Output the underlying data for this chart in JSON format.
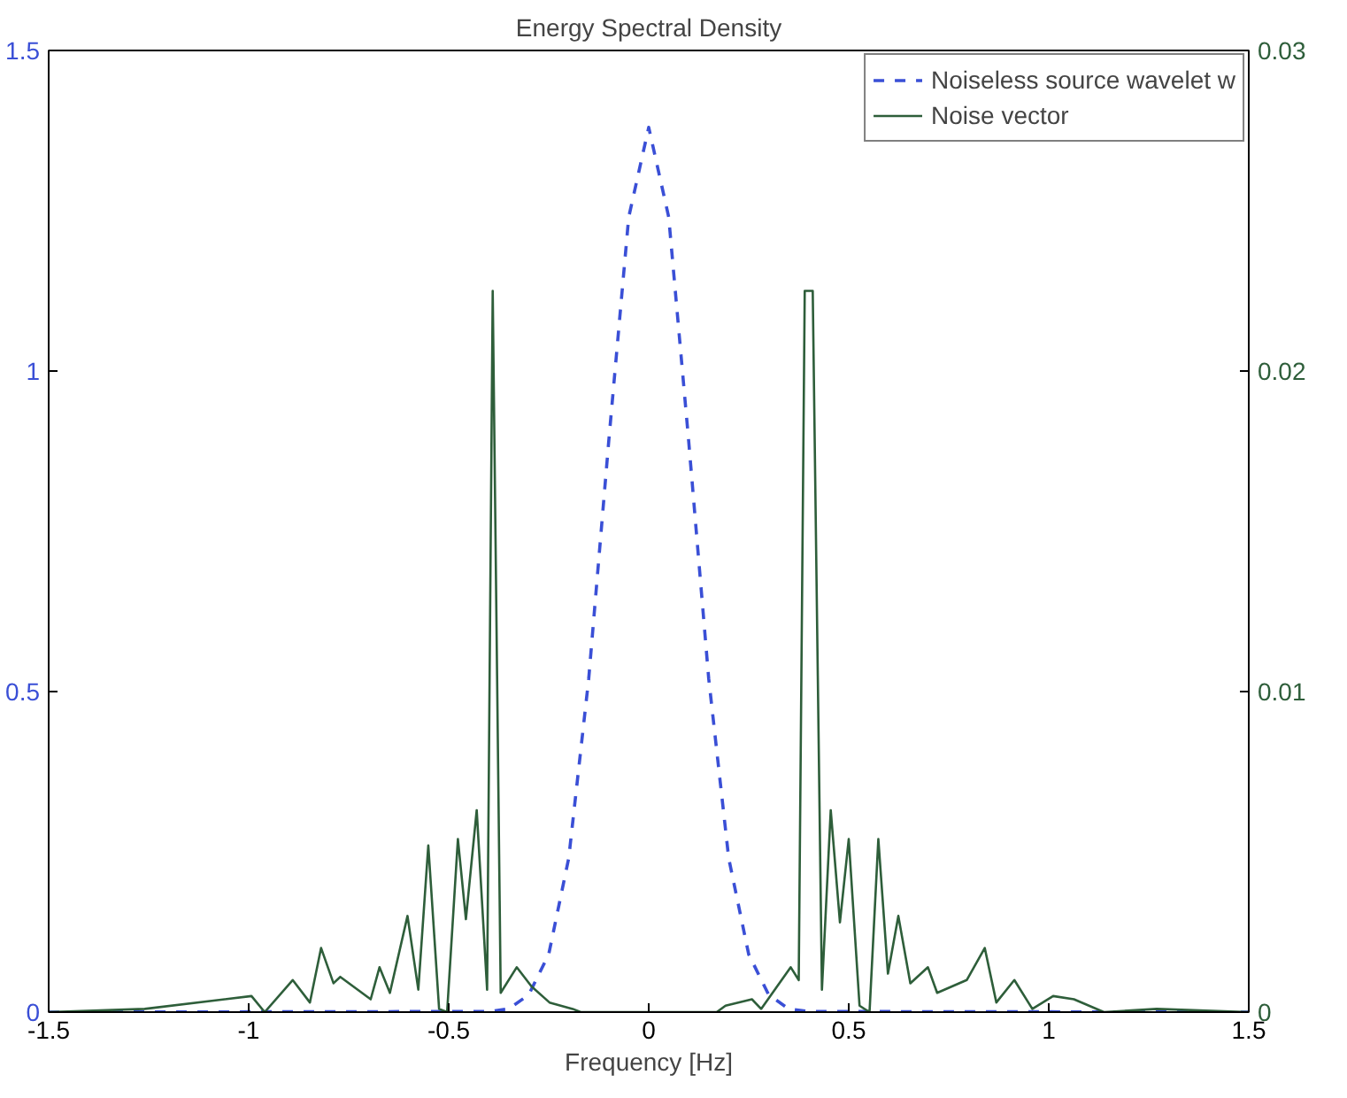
{
  "chart_data": {
    "type": "line",
    "title": "Energy Spectral Density",
    "xlabel": "Frequency [Hz]",
    "xlim": [
      -1.5,
      1.5
    ],
    "xticks": [
      -1.5,
      -1,
      -0.5,
      0,
      0.5,
      1,
      1.5
    ],
    "ylim": [
      0,
      1.5
    ],
    "yticks": [
      0,
      0.5,
      1,
      1.5
    ],
    "y2lim": [
      0,
      0.03
    ],
    "y2ticks": [
      0,
      0.01,
      0.02,
      0.03
    ],
    "grid": false,
    "legend": "top right",
    "marker": "none",
    "series": [
      {
        "name": "Noiseless source wavelet w",
        "color": "#3a4fd6",
        "line_style": "dashed",
        "x": [
          -1.5,
          -0.4,
          -0.35,
          -0.3,
          -0.25,
          -0.2,
          -0.15,
          -0.1,
          -0.05,
          0,
          0.05,
          0.1,
          0.15,
          0.2,
          0.25,
          0.3,
          0.35,
          0.4,
          1.5
        ],
        "values": [
          0,
          0.001,
          0.005,
          0.027,
          0.09,
          0.24,
          0.52,
          0.89,
          1.24,
          1.38,
          1.24,
          0.89,
          0.52,
          0.24,
          0.09,
          0.027,
          0.005,
          0.001,
          0
        ]
      },
      {
        "name": "Noise vector",
        "color": "#2e5e3a",
        "line_style": "solid",
        "axis": "y2",
        "x": [
          -1.5,
          -1.26,
          -0.993,
          -0.96,
          -0.89,
          -0.847,
          -0.819,
          -0.788,
          -0.771,
          -0.695,
          -0.673,
          -0.647,
          -0.603,
          -0.576,
          -0.551,
          -0.524,
          -0.504,
          -0.477,
          -0.457,
          -0.43,
          -0.404,
          -0.39,
          -0.37,
          -0.33,
          -0.293,
          -0.248,
          -0.19,
          -0.17,
          0.17,
          0.192,
          0.258,
          0.281,
          0.355,
          0.375,
          0.39,
          0.41,
          0.433,
          0.455,
          0.478,
          0.5,
          0.527,
          0.552,
          0.574,
          0.598,
          0.624,
          0.654,
          0.698,
          0.721,
          0.795,
          0.84,
          0.869,
          0.914,
          0.959,
          1.011,
          1.063,
          1.138,
          1.27,
          1.5
        ],
        "values": [
          0,
          0.0001,
          0.0005,
          0,
          0.001,
          0.0003,
          0.002,
          0.0009,
          0.0011,
          0.0004,
          0.0014,
          0.0006,
          0.003,
          0.0007,
          0.0052,
          0.0001,
          0,
          0.0054,
          0.0029,
          0.0063,
          0.0007,
          0.0225,
          0.0006,
          0.0014,
          0.0008,
          0.0003,
          0.0001,
          0,
          0,
          0.0002,
          0.0004,
          0.0001,
          0.0014,
          0.001,
          0.0225,
          0.0225,
          0.0007,
          0.0063,
          0.0028,
          0.0054,
          0.0002,
          0,
          0.0054,
          0.0012,
          0.003,
          0.0009,
          0.0014,
          0.0006,
          0.001,
          0.002,
          0.0003,
          0.001,
          0.0001,
          0.0005,
          0.0004,
          0,
          0.0001,
          0
        ]
      }
    ]
  }
}
